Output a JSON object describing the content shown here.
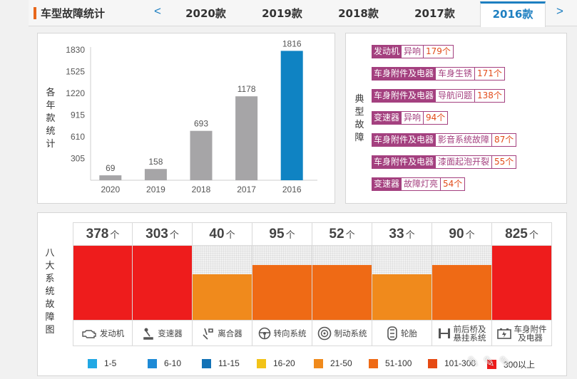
{
  "header": {
    "title": "车型故障统计",
    "prev_arrow": "<",
    "next_arrow": ">",
    "tabs": [
      {
        "label": "2020款",
        "active": false
      },
      {
        "label": "2019款",
        "active": false
      },
      {
        "label": "2018款",
        "active": false
      },
      {
        "label": "2017款",
        "active": false
      },
      {
        "label": "2016款",
        "active": true
      }
    ]
  },
  "chart_panel": {
    "ylabel_chars": [
      "各",
      "年",
      "款",
      "统",
      "计"
    ]
  },
  "chart_data": {
    "type": "bar",
    "categories": [
      "2020",
      "2019",
      "2018",
      "2017",
      "2016"
    ],
    "values": [
      69,
      158,
      693,
      1178,
      1816
    ],
    "highlight_index": 4,
    "colors": {
      "default": "#a6a5a7",
      "highlight": "#0f83c3"
    },
    "yticks": [
      305,
      610,
      915,
      1220,
      1525,
      1830
    ],
    "ylim": [
      0,
      1830
    ],
    "grid": false
  },
  "typical_faults": {
    "label_chars": [
      "典",
      "型",
      "故",
      "障"
    ],
    "items": [
      {
        "system": "发动机",
        "issue": "异响",
        "count": "179个"
      },
      {
        "system": "车身附件及电器",
        "issue": "车身生锈",
        "count": "171个"
      },
      {
        "system": "车身附件及电器",
        "issue": "导航问题",
        "count": "138个"
      },
      {
        "system": "变速器",
        "issue": "异响",
        "count": "94个"
      },
      {
        "system": "车身附件及电器",
        "issue": "影音系统故障",
        "count": "87个"
      },
      {
        "system": "车身附件及电器",
        "issue": "漆面起泡开裂",
        "count": "55个"
      },
      {
        "system": "变速器",
        "issue": "故障灯亮",
        "count": "54个"
      }
    ]
  },
  "systems_panel": {
    "label_chars": [
      "八",
      "大",
      "系",
      "统",
      "故",
      "障",
      "图"
    ],
    "unit": "个",
    "systems": [
      {
        "name": "发动机",
        "count": "378",
        "level": 1.0,
        "color": "#ee1c1c",
        "icon": "engine-icon"
      },
      {
        "name": "变速器",
        "count": "303",
        "level": 1.0,
        "color": "#ee1c1c",
        "icon": "gear-shift-icon"
      },
      {
        "name": "离合器",
        "count": "40",
        "level": 0.62,
        "color": "#f08a1c",
        "icon": "clutch-pedal-icon"
      },
      {
        "name": "转向系统",
        "count": "95",
        "level": 0.74,
        "color": "#ef6a15",
        "icon": "steering-wheel-icon"
      },
      {
        "name": "制动系统",
        "count": "52",
        "level": 0.74,
        "color": "#ef6a15",
        "icon": "brake-disc-icon"
      },
      {
        "name": "轮胎",
        "count": "33",
        "level": 0.62,
        "color": "#f08a1c",
        "icon": "tire-icon"
      },
      {
        "name": "前后桥及\n悬挂系统",
        "count": "90",
        "level": 0.74,
        "color": "#ef6a15",
        "icon": "axle-icon"
      },
      {
        "name": "车身附件\n及电器",
        "count": "825",
        "level": 1.0,
        "color": "#ee1c1c",
        "icon": "battery-icon"
      }
    ],
    "legend": [
      {
        "label": "1-5",
        "color": "#21a8e4"
      },
      {
        "label": "6-10",
        "color": "#1d8ad6"
      },
      {
        "label": "11-15",
        "color": "#1272b6"
      },
      {
        "label": "16-20",
        "color": "#f2c318"
      },
      {
        "label": "21-50",
        "color": "#f08a1c"
      },
      {
        "label": "51-100",
        "color": "#ef6a15"
      },
      {
        "label": "101-300",
        "color": "#e64a13"
      },
      {
        "label": "300以上",
        "color": "#ee1c1c"
      }
    ]
  }
}
